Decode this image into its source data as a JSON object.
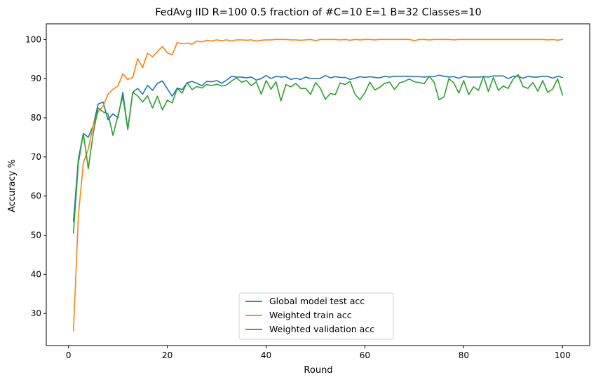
{
  "chart_data": {
    "type": "line",
    "title": "FedAvg IID R=100 0.5 fraction of #C=10 E=1 B=32  Classes=10",
    "xlabel": "Round",
    "ylabel": "Accuracy %",
    "xlim": [
      -4.5,
      105.5
    ],
    "ylim": [
      21.8,
      104.0
    ],
    "xticks": [
      0,
      20,
      40,
      60,
      80,
      100
    ],
    "yticks": [
      30,
      40,
      50,
      60,
      70,
      80,
      90,
      100
    ],
    "grid": false,
    "legend_position": "lower-center",
    "x": [
      1,
      2,
      3,
      4,
      5,
      6,
      7,
      8,
      9,
      10,
      11,
      12,
      13,
      14,
      15,
      16,
      17,
      18,
      19,
      20,
      21,
      22,
      23,
      24,
      25,
      26,
      27,
      28,
      29,
      30,
      31,
      32,
      33,
      34,
      35,
      36,
      37,
      38,
      39,
      40,
      41,
      42,
      43,
      44,
      45,
      46,
      47,
      48,
      49,
      50,
      51,
      52,
      53,
      54,
      55,
      56,
      57,
      58,
      59,
      60,
      61,
      62,
      63,
      64,
      65,
      66,
      67,
      68,
      69,
      70,
      71,
      72,
      73,
      74,
      75,
      76,
      77,
      78,
      79,
      80,
      81,
      82,
      83,
      84,
      85,
      86,
      87,
      88,
      89,
      90,
      91,
      92,
      93,
      94,
      95,
      96,
      97,
      98,
      99,
      100
    ],
    "series": [
      {
        "name": "Global model test acc",
        "color": "#1f77b4",
        "values": [
          53.5,
          69.5,
          76.0,
          75.0,
          78.0,
          83.5,
          84.0,
          79.5,
          81.0,
          80.0,
          86.5,
          77.0,
          86.5,
          87.5,
          86.0,
          88.3,
          87.0,
          88.8,
          89.4,
          87.4,
          85.5,
          87.6,
          87.2,
          88.9,
          89.3,
          88.8,
          88.2,
          89.3,
          89.2,
          89.5,
          88.8,
          89.6,
          90.6,
          90.4,
          90.4,
          90.2,
          90.4,
          89.6,
          90.0,
          90.8,
          90.0,
          90.6,
          90.4,
          90.5,
          89.8,
          90.1,
          89.8,
          90.4,
          90.0,
          90.0,
          90.1,
          90.8,
          90.2,
          90.5,
          90.3,
          90.3,
          89.8,
          90.1,
          90.5,
          90.3,
          90.5,
          90.3,
          90.2,
          90.6,
          90.4,
          90.6,
          90.6,
          90.6,
          90.6,
          90.5,
          90.5,
          90.4,
          90.5,
          90.5,
          90.9,
          90.6,
          90.4,
          90.5,
          90.1,
          90.6,
          90.4,
          90.4,
          90.4,
          90.5,
          90.4,
          90.7,
          90.7,
          90.7,
          90.0,
          90.6,
          90.6,
          90.1,
          90.6,
          90.4,
          90.4,
          90.6,
          90.6,
          90.1,
          90.6,
          90.3
        ]
      },
      {
        "name": "Weighted train acc",
        "color": "#ff7f0e",
        "values": [
          25.5,
          55.0,
          68.5,
          72.0,
          78.0,
          81.5,
          83.0,
          86.0,
          87.3,
          88.1,
          91.2,
          89.8,
          90.3,
          95.1,
          92.8,
          96.5,
          95.6,
          96.9,
          98.2,
          96.6,
          96.1,
          99.2,
          98.9,
          99.1,
          98.8,
          99.6,
          99.4,
          99.8,
          99.6,
          99.9,
          99.7,
          99.9,
          99.6,
          99.9,
          99.9,
          99.8,
          99.9,
          99.6,
          99.8,
          99.9,
          99.9,
          100.0,
          100.0,
          100.0,
          99.9,
          99.9,
          99.8,
          99.9,
          100.0,
          99.7,
          100.0,
          100.0,
          100.0,
          100.0,
          99.9,
          100.0,
          99.8,
          100.0,
          99.9,
          100.0,
          100.0,
          99.9,
          100.0,
          100.0,
          100.0,
          100.0,
          100.0,
          100.0,
          100.0,
          99.7,
          100.0,
          100.0,
          99.9,
          100.0,
          100.0,
          100.0,
          100.0,
          99.9,
          100.0,
          100.0,
          100.0,
          100.0,
          100.0,
          100.0,
          100.0,
          100.0,
          100.0,
          100.0,
          100.0,
          100.0,
          100.0,
          100.0,
          100.0,
          100.0,
          100.0,
          100.0,
          99.9,
          100.0,
          99.8,
          100.0
        ]
      },
      {
        "name": "Weighted validation acc",
        "color": "#2ca02c",
        "values": [
          50.5,
          68.5,
          76.0,
          67.0,
          76.0,
          82.5,
          81.5,
          81.0,
          75.5,
          80.5,
          85.5,
          77.0,
          86.5,
          85.6,
          84.0,
          85.6,
          82.5,
          85.5,
          82.0,
          84.5,
          83.8,
          87.5,
          86.3,
          89.0,
          87.2,
          88.0,
          87.6,
          88.5,
          88.2,
          88.6,
          88.1,
          88.4,
          89.4,
          90.2,
          89.1,
          89.5,
          88.2,
          89.2,
          86.0,
          89.5,
          87.3,
          89.2,
          84.3,
          88.5,
          87.9,
          88.8,
          87.5,
          87.5,
          86.0,
          89.0,
          87.5,
          84.7,
          86.2,
          85.9,
          88.9,
          88.5,
          89.3,
          86.0,
          84.6,
          86.4,
          89.1,
          87.1,
          87.8,
          88.8,
          89.1,
          87.2,
          88.9,
          89.3,
          89.9,
          89.2,
          89.0,
          88.7,
          90.6,
          89.1,
          84.6,
          85.3,
          90.0,
          88.9,
          86.3,
          89.5,
          85.9,
          87.9,
          87.0,
          90.6,
          86.7,
          90.3,
          87.0,
          88.1,
          87.5,
          89.9,
          91.0,
          88.0,
          87.5,
          89.0,
          86.8,
          89.5,
          86.5,
          87.3,
          90.0,
          85.8
        ]
      }
    ]
  }
}
